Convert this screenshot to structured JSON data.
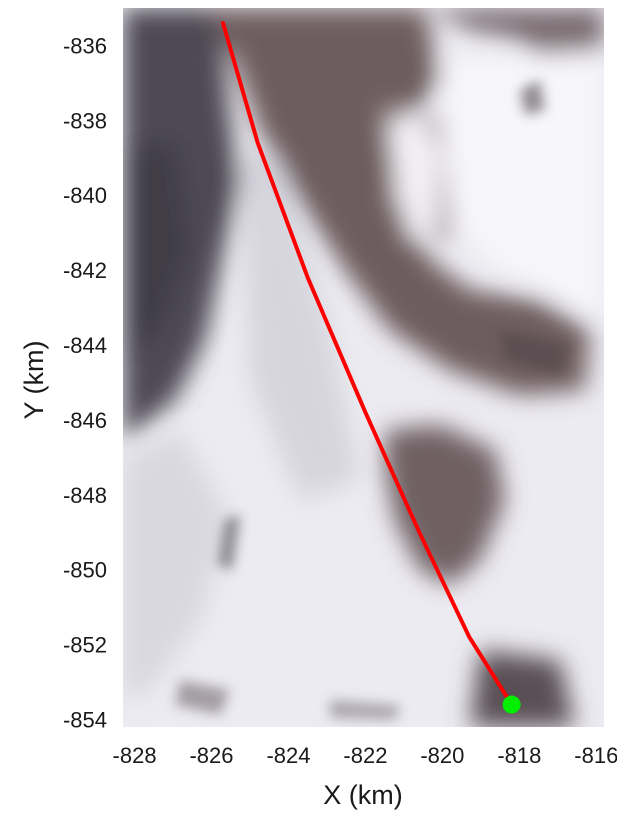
{
  "chart_data": {
    "type": "line",
    "title": "",
    "xlabel": "X (km)",
    "ylabel": "Y (km)",
    "xlim": [
      -828.3,
      -815.8
    ],
    "ylim": [
      -854.2,
      -835.0
    ],
    "x_ticks": [
      -828,
      -826,
      -824,
      -822,
      -820,
      -818,
      -816
    ],
    "y_ticks": [
      -836,
      -838,
      -840,
      -842,
      -844,
      -846,
      -848,
      -850,
      -852,
      -854
    ],
    "x_tick_labels": [
      "-828",
      "-826",
      "-824",
      "-822",
      "-820",
      "-818",
      "-816"
    ],
    "y_tick_labels": [
      "-836",
      "-838",
      "-840",
      "-842",
      "-844",
      "-846",
      "-848",
      "-850",
      "-852",
      "-854"
    ],
    "grid": false,
    "background": "satellite imagery of a glacier",
    "series": [
      {
        "color": "#ff0000",
        "x": [
          -825.7,
          -824.8,
          -823.5,
          -822.0,
          -820.6,
          -819.3,
          -818.2
        ],
        "y": [
          -835.4,
          -838.6,
          -842.2,
          -845.8,
          -849.0,
          -851.8,
          -853.6
        ]
      }
    ],
    "markers": [
      {
        "x": -818.2,
        "y": -853.6,
        "color": "#00ee00"
      }
    ]
  }
}
